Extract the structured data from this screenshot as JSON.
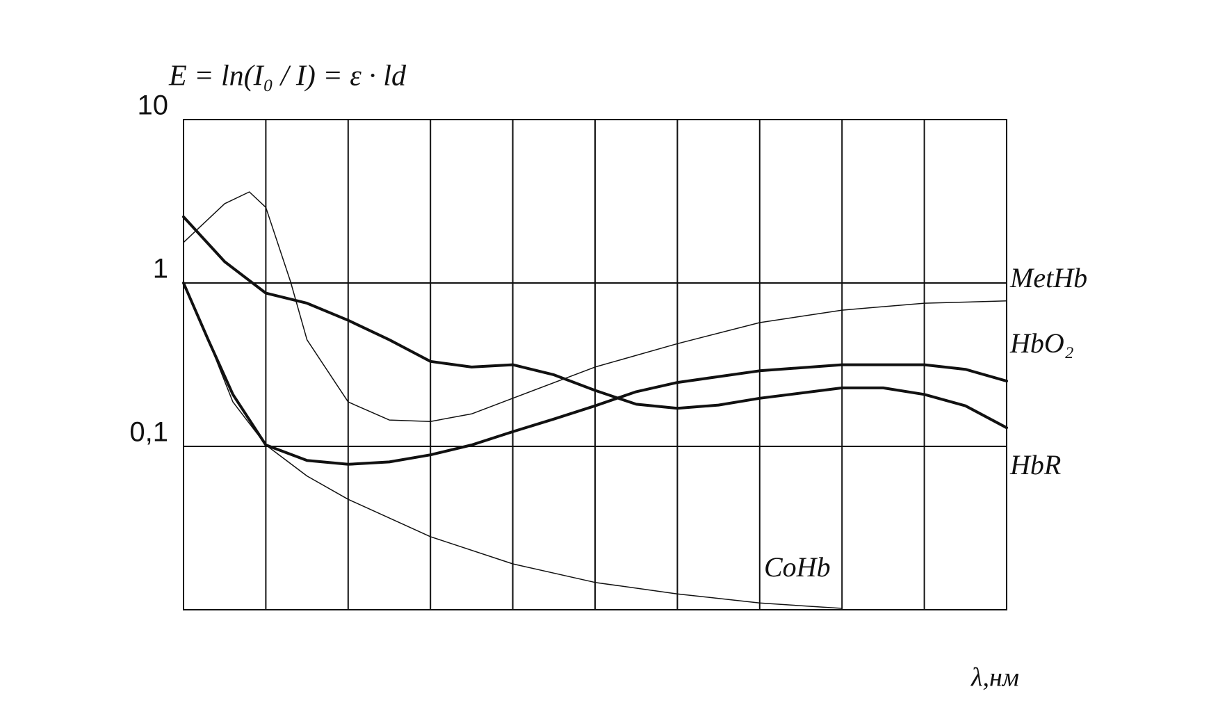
{
  "chart_data": {
    "type": "line",
    "title": "E = ln(I₀ / I) = ε · ld",
    "x_label": "λ,нм",
    "log_y": true,
    "grid": true,
    "xlim": [
      0,
      10
    ],
    "xticks": [
      0,
      1,
      2,
      3,
      4,
      5,
      6,
      7,
      8,
      9,
      10
    ],
    "ylim": [
      0.01,
      10
    ],
    "yticks": [
      {
        "value": 0.1,
        "label": "0,1"
      },
      1,
      10
    ],
    "series": [
      {
        "name": "MetHb",
        "color": "#111111",
        "width": 1.5,
        "x": [
          0,
          0.5,
          0.8,
          1,
          1.3,
          1.5,
          2,
          2.5,
          3,
          3.5,
          4,
          5,
          6,
          7,
          8,
          9,
          10
        ],
        "values": [
          1.77,
          3.06,
          3.61,
          2.9,
          1.02,
          0.449,
          0.187,
          0.145,
          0.142,
          0.158,
          0.197,
          0.306,
          0.425,
          0.572,
          0.682,
          0.752,
          0.777
        ]
      },
      {
        "name": "HbO₂",
        "color": "#111111",
        "width": 4,
        "x": [
          0,
          0.3,
          0.6,
          1,
          1.5,
          2,
          2.5,
          3,
          3.5,
          4,
          4.5,
          5,
          5.5,
          6,
          7,
          8,
          9,
          9.5,
          10
        ],
        "values": [
          1.0,
          0.449,
          0.208,
          0.102,
          0.082,
          0.0777,
          0.0803,
          0.0887,
          0.102,
          0.123,
          0.147,
          0.177,
          0.216,
          0.246,
          0.29,
          0.316,
          0.316,
          0.296,
          0.251
        ]
      },
      {
        "name": "HbR",
        "color": "#111111",
        "width": 4,
        "x": [
          0,
          0.5,
          1,
          1.5,
          2,
          2.5,
          3,
          3.5,
          4,
          4.5,
          5,
          5.5,
          6,
          6.5,
          7,
          8,
          8.5,
          9,
          9.5,
          10
        ],
        "values": [
          2.54,
          1.35,
          0.867,
          0.752,
          0.591,
          0.449,
          0.331,
          0.306,
          0.316,
          0.274,
          0.22,
          0.181,
          0.171,
          0.179,
          0.197,
          0.228,
          0.228,
          0.208,
          0.177,
          0.13
        ]
      },
      {
        "name": "CoHb",
        "color": "#111111",
        "width": 1.5,
        "x": [
          0,
          0.3,
          0.6,
          1,
          1.5,
          2,
          3,
          4,
          5,
          6,
          7,
          8
        ],
        "values": [
          1.0,
          0.449,
          0.187,
          0.102,
          0.0659,
          0.0474,
          0.028,
          0.0191,
          0.0147,
          0.0125,
          0.011,
          0.0102
        ]
      }
    ]
  }
}
